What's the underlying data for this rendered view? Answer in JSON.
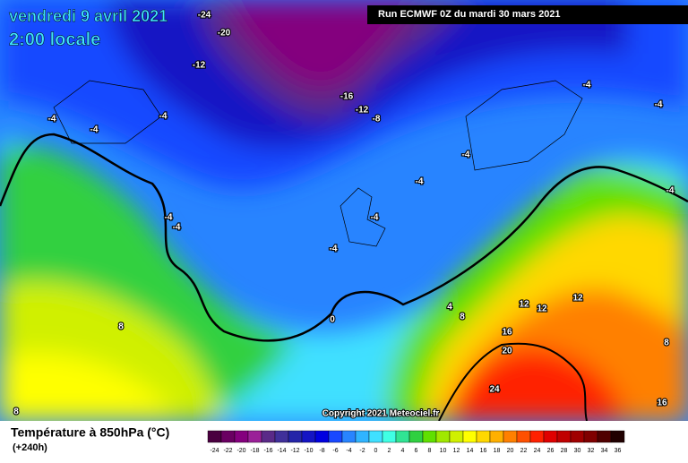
{
  "header": {
    "date": "vendredi 9 avril 2021",
    "time": "2:00 locale",
    "run": "Run ECMWF 0Z du mardi 30 mars 2021"
  },
  "copyright": "Copyright 2021 Meteociel.fr",
  "contour_labels": [
    -24,
    -20,
    -12,
    -16,
    -12,
    -8,
    -4,
    -4,
    -4,
    -4,
    -4,
    -4,
    -4,
    -4,
    -4,
    -4,
    -4,
    -4,
    0,
    4,
    8,
    8,
    8,
    12,
    12,
    12,
    16,
    20,
    24,
    16,
    8
  ],
  "legend": {
    "title": "Température à 850hPa (°C)",
    "subtitle": "(+240h)",
    "values": [
      -24,
      -22,
      -20,
      -18,
      -16,
      -14,
      -12,
      -10,
      -8,
      -6,
      -4,
      -2,
      0,
      2,
      4,
      6,
      8,
      10,
      12,
      14,
      16,
      18,
      20,
      22,
      24,
      26,
      28,
      30,
      32,
      34,
      36
    ],
    "colors": [
      "#4a0040",
      "#6a0062",
      "#84007e",
      "#9a2098",
      "#5a2a88",
      "#40309a",
      "#2424a8",
      "#1414c4",
      "#0000e0",
      "#1848ff",
      "#2884ff",
      "#30b4ff",
      "#40e0ff",
      "#40ffe4",
      "#30e494",
      "#30d040",
      "#60e000",
      "#a0e800",
      "#d0f000",
      "#ffff00",
      "#ffd800",
      "#ffb000",
      "#ff8000",
      "#ff5000",
      "#ff2000",
      "#e00000",
      "#c00000",
      "#a00000",
      "#800000",
      "#500000",
      "#200000"
    ]
  }
}
